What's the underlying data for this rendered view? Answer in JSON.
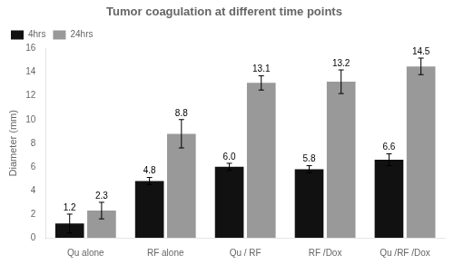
{
  "chart_data": {
    "type": "bar",
    "title": "Tumor coagulation at different time points",
    "ylabel": "Diameter (mm)",
    "categories": [
      "Qu alone",
      "RF alone",
      "Qu / RF",
      "RF /Dox",
      "Qu /RF /Dox"
    ],
    "series": [
      {
        "name": "4hrs",
        "color": "#111111",
        "values": [
          1.2,
          4.8,
          6.0,
          5.8,
          6.6
        ],
        "value_labels": [
          "1.2",
          "4.8",
          "6.0",
          "5.8",
          "6.6"
        ],
        "errors": [
          0.8,
          0.3,
          0.3,
          0.3,
          0.5
        ]
      },
      {
        "name": "24hrs",
        "color": "#999999",
        "values": [
          2.3,
          8.8,
          13.1,
          13.2,
          14.5
        ],
        "errors": [
          0.7,
          1.2,
          0.6,
          1.0,
          0.7
        ]
      }
    ],
    "ylim": [
      0,
      16
    ],
    "yticks": [
      0,
      2,
      4,
      6,
      8,
      10,
      12,
      14,
      16
    ],
    "data_labels": true,
    "legend": "upper left",
    "grid": false
  }
}
